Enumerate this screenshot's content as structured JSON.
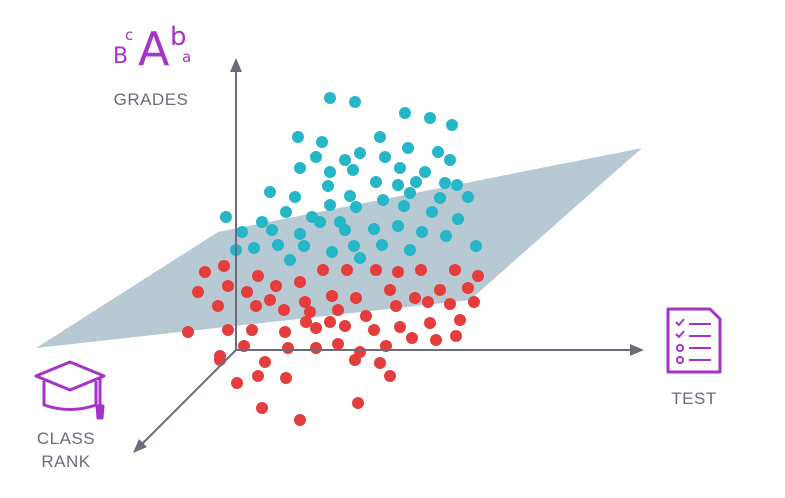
{
  "labels": {
    "grades": "GRADES",
    "test": "TEST",
    "class_rank_line1": "CLASS",
    "class_rank_line2": "RANK"
  },
  "grade_letters": {
    "big": "A",
    "left_small": "B",
    "left_tiny": "c",
    "right_small": "b",
    "right_tiny": "a"
  },
  "icons": {
    "grades": "grade-letters-icon",
    "test": "checklist-document-icon",
    "class_rank": "graduation-cap-icon"
  },
  "colors": {
    "axis": "#6b6b7b",
    "plane": "#b7c9d3",
    "upper_points": "#25b6c8",
    "lower_points": "#e53c3c",
    "icon_accent": "#a533c8"
  }
}
